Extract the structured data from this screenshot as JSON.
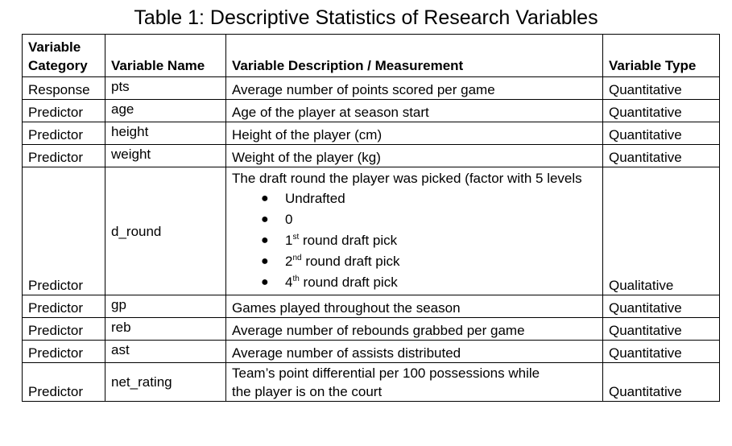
{
  "title": "Table 1: Descriptive Statistics of Research Variables",
  "headers": {
    "category_line1": "Variable",
    "category_line2": "Category",
    "name": "Variable Name",
    "description": "Variable Description / Measurement",
    "type": "Variable Type"
  },
  "rows": [
    {
      "category": "Response",
      "name": "pts",
      "description": "Average number of points scored per game",
      "type": "Quantitative"
    },
    {
      "category": "Predictor",
      "name": "age",
      "description": "Age of the player at season start",
      "type": "Quantitative"
    },
    {
      "category": "Predictor",
      "name": "height",
      "description": "Height of the player (cm)",
      "type": "Quantitative"
    },
    {
      "category": "Predictor",
      "name": "weight",
      "description": "Weight of the player (kg)",
      "type": "Quantitative"
    },
    {
      "category": "Predictor",
      "name": "d_round",
      "description": "The draft round the player was picked (factor with 5 levels",
      "type": "Qualitative"
    },
    {
      "category": "Predictor",
      "name": "gp",
      "description": "Games played throughout the season",
      "type": "Quantitative"
    },
    {
      "category": "Predictor",
      "name": "reb",
      "description": "Average number of rebounds grabbed per game",
      "type": "Quantitative"
    },
    {
      "category": "Predictor",
      "name": "ast",
      "description": "Average number of assists distributed",
      "type": "Quantitative"
    },
    {
      "category": "Predictor",
      "name": "net_rating",
      "description_line1": "Team’s point differential per 100 possessions while",
      "description_line2": "the player is on the court",
      "type": "Quantitative"
    }
  ],
  "d_round_levels": [
    {
      "pre": "Undrafted",
      "sup": "",
      "post": ""
    },
    {
      "pre": "0",
      "sup": "",
      "post": ""
    },
    {
      "pre": "1",
      "sup": "st",
      "post": " round draft pick"
    },
    {
      "pre": "2",
      "sup": "nd",
      "post": " round draft pick"
    },
    {
      "pre": "4",
      "sup": "th",
      "post": " round draft pick"
    }
  ],
  "bullet_glyph": "●"
}
